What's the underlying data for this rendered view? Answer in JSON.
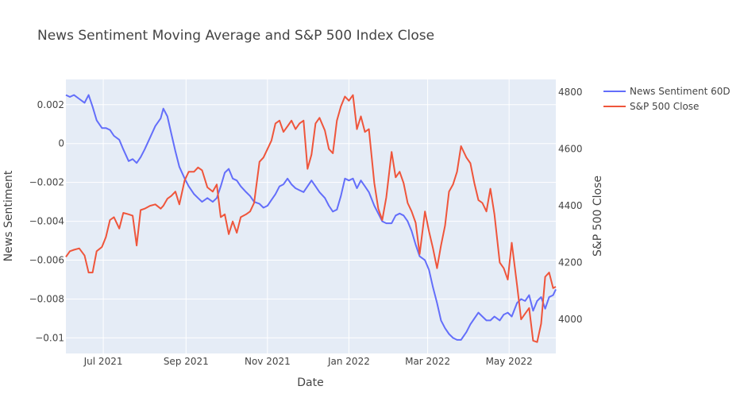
{
  "chart_data": {
    "type": "line",
    "title": "News Sentiment Moving Average and S&P 500 Index Close",
    "xlabel": "Date",
    "ylabel": "News Sentiment",
    "y2label": "S&P 500 Close",
    "x_range": [
      "2021-06-03",
      "2022-06-05"
    ],
    "ylim": [
      -0.0108,
      0.0033
    ],
    "y2lim": [
      3880,
      4845
    ],
    "x_ticks": [
      {
        "date": "2021-07-01",
        "label": "Jul 2021"
      },
      {
        "date": "2021-09-01",
        "label": "Sep 2021"
      },
      {
        "date": "2021-11-01",
        "label": "Nov 2021"
      },
      {
        "date": "2022-01-01",
        "label": "Jan 2022"
      },
      {
        "date": "2022-03-01",
        "label": "Mar 2022"
      },
      {
        "date": "2022-05-01",
        "label": "May 2022"
      }
    ],
    "y_ticks": [
      {
        "value": 0.002,
        "label": "0.002"
      },
      {
        "value": 0,
        "label": "0"
      },
      {
        "value": -0.002,
        "label": "−0.002"
      },
      {
        "value": -0.004,
        "label": "−0.004"
      },
      {
        "value": -0.006,
        "label": "−0.006"
      },
      {
        "value": -0.008,
        "label": "−0.008"
      },
      {
        "value": -0.01,
        "label": "−0.01"
      }
    ],
    "y2_ticks": [
      {
        "value": 4000,
        "label": "4000"
      },
      {
        "value": 4200,
        "label": "4200"
      },
      {
        "value": 4400,
        "label": "4400"
      },
      {
        "value": 4600,
        "label": "4600"
      },
      {
        "value": 4800,
        "label": "4800"
      }
    ],
    "grid": true,
    "legend_position": "top-right",
    "colors": {
      "plot_bg": "#e5ecf6",
      "grid": "#ffffff",
      "sentiment": "#636efa",
      "sp500": "#ef553b"
    },
    "series": [
      {
        "name": "News Sentiment 60D",
        "axis": "left",
        "color": "#636efa",
        "points": [
          [
            "2021-06-03",
            0.0025
          ],
          [
            "2021-06-06",
            0.0024
          ],
          [
            "2021-06-09",
            0.0025
          ],
          [
            "2021-06-13",
            0.0023
          ],
          [
            "2021-06-17",
            0.0021
          ],
          [
            "2021-06-20",
            0.0025
          ],
          [
            "2021-06-23",
            0.0019
          ],
          [
            "2021-06-26",
            0.0012
          ],
          [
            "2021-06-30",
            0.0008
          ],
          [
            "2021-07-03",
            0.0008
          ],
          [
            "2021-07-06",
            0.0007
          ],
          [
            "2021-07-09",
            0.0004
          ],
          [
            "2021-07-13",
            0.0002
          ],
          [
            "2021-07-16",
            -0.0003
          ],
          [
            "2021-07-20",
            -0.0009
          ],
          [
            "2021-07-23",
            -0.0008
          ],
          [
            "2021-07-26",
            -0.001
          ],
          [
            "2021-07-29",
            -0.0007
          ],
          [
            "2021-08-01",
            -0.0003
          ],
          [
            "2021-08-05",
            0.0003
          ],
          [
            "2021-08-09",
            0.0009
          ],
          [
            "2021-08-13",
            0.0013
          ],
          [
            "2021-08-15",
            0.0018
          ],
          [
            "2021-08-18",
            0.0014
          ],
          [
            "2021-08-21",
            0.0005
          ],
          [
            "2021-08-24",
            -0.0004
          ],
          [
            "2021-08-27",
            -0.0012
          ],
          [
            "2021-08-31",
            -0.0018
          ],
          [
            "2021-09-03",
            -0.0022
          ],
          [
            "2021-09-07",
            -0.0026
          ],
          [
            "2021-09-10",
            -0.0028
          ],
          [
            "2021-09-13",
            -0.003
          ],
          [
            "2021-09-17",
            -0.0028
          ],
          [
            "2021-09-21",
            -0.003
          ],
          [
            "2021-09-24",
            -0.0028
          ],
          [
            "2021-09-27",
            -0.0022
          ],
          [
            "2021-09-30",
            -0.0015
          ],
          [
            "2021-10-03",
            -0.0013
          ],
          [
            "2021-10-06",
            -0.0018
          ],
          [
            "2021-10-09",
            -0.0019
          ],
          [
            "2021-10-12",
            -0.0022
          ],
          [
            "2021-10-16",
            -0.0025
          ],
          [
            "2021-10-19",
            -0.0027
          ],
          [
            "2021-10-22",
            -0.003
          ],
          [
            "2021-10-26",
            -0.0031
          ],
          [
            "2021-10-29",
            -0.0033
          ],
          [
            "2021-11-01",
            -0.0032
          ],
          [
            "2021-11-04",
            -0.0029
          ],
          [
            "2021-11-07",
            -0.0026
          ],
          [
            "2021-11-10",
            -0.0022
          ],
          [
            "2021-11-13",
            -0.0021
          ],
          [
            "2021-11-16",
            -0.0018
          ],
          [
            "2021-11-19",
            -0.0021
          ],
          [
            "2021-11-22",
            -0.0023
          ],
          [
            "2021-11-25",
            -0.0024
          ],
          [
            "2021-11-28",
            -0.0025
          ],
          [
            "2021-12-01",
            -0.0022
          ],
          [
            "2021-12-04",
            -0.0019
          ],
          [
            "2021-12-07",
            -0.0022
          ],
          [
            "2021-12-10",
            -0.0025
          ],
          [
            "2021-12-14",
            -0.0028
          ],
          [
            "2021-12-17",
            -0.0032
          ],
          [
            "2021-12-20",
            -0.0035
          ],
          [
            "2021-12-23",
            -0.0034
          ],
          [
            "2021-12-26",
            -0.0027
          ],
          [
            "2021-12-29",
            -0.0018
          ],
          [
            "2022-01-01",
            -0.0019
          ],
          [
            "2022-01-04",
            -0.0018
          ],
          [
            "2022-01-07",
            -0.0023
          ],
          [
            "2022-01-10",
            -0.0019
          ],
          [
            "2022-01-13",
            -0.0022
          ],
          [
            "2022-01-16",
            -0.0025
          ],
          [
            "2022-01-20",
            -0.0032
          ],
          [
            "2022-01-23",
            -0.0036
          ],
          [
            "2022-01-26",
            -0.004
          ],
          [
            "2022-01-29",
            -0.0041
          ],
          [
            "2022-02-02",
            -0.0041
          ],
          [
            "2022-02-05",
            -0.0037
          ],
          [
            "2022-02-08",
            -0.0036
          ],
          [
            "2022-02-11",
            -0.0037
          ],
          [
            "2022-02-14",
            -0.004
          ],
          [
            "2022-02-17",
            -0.0045
          ],
          [
            "2022-02-20",
            -0.0052
          ],
          [
            "2022-02-23",
            -0.0058
          ],
          [
            "2022-02-27",
            -0.006
          ],
          [
            "2022-03-02",
            -0.0065
          ],
          [
            "2022-03-05",
            -0.0074
          ],
          [
            "2022-03-08",
            -0.0082
          ],
          [
            "2022-03-11",
            -0.0091
          ],
          [
            "2022-03-14",
            -0.0095
          ],
          [
            "2022-03-17",
            -0.0098
          ],
          [
            "2022-03-20",
            -0.01
          ],
          [
            "2022-03-23",
            -0.0101
          ],
          [
            "2022-03-26",
            -0.0101
          ],
          [
            "2022-03-30",
            -0.0097
          ],
          [
            "2022-04-02",
            -0.0093
          ],
          [
            "2022-04-05",
            -0.009
          ],
          [
            "2022-04-08",
            -0.0087
          ],
          [
            "2022-04-11",
            -0.0089
          ],
          [
            "2022-04-14",
            -0.0091
          ],
          [
            "2022-04-17",
            -0.0091
          ],
          [
            "2022-04-20",
            -0.0089
          ],
          [
            "2022-04-24",
            -0.0091
          ],
          [
            "2022-04-27",
            -0.0088
          ],
          [
            "2022-04-30",
            -0.0087
          ],
          [
            "2022-05-03",
            -0.0089
          ],
          [
            "2022-05-07",
            -0.0082
          ],
          [
            "2022-05-10",
            -0.008
          ],
          [
            "2022-05-13",
            -0.0081
          ],
          [
            "2022-05-16",
            -0.0078
          ],
          [
            "2022-05-19",
            -0.0086
          ],
          [
            "2022-05-22",
            -0.0081
          ],
          [
            "2022-05-25",
            -0.0079
          ],
          [
            "2022-05-28",
            -0.0085
          ],
          [
            "2022-05-31",
            -0.0079
          ],
          [
            "2022-06-03",
            -0.0078
          ],
          [
            "2022-06-05",
            -0.0075
          ]
        ]
      },
      {
        "name": "S&P 500 Close",
        "axis": "right",
        "color": "#ef553b",
        "points": [
          [
            "2021-06-03",
            4220
          ],
          [
            "2021-06-06",
            4240
          ],
          [
            "2021-06-09",
            4245
          ],
          [
            "2021-06-13",
            4250
          ],
          [
            "2021-06-17",
            4225
          ],
          [
            "2021-06-20",
            4165
          ],
          [
            "2021-06-23",
            4165
          ],
          [
            "2021-06-26",
            4240
          ],
          [
            "2021-06-30",
            4255
          ],
          [
            "2021-07-03",
            4290
          ],
          [
            "2021-07-06",
            4350
          ],
          [
            "2021-07-09",
            4360
          ],
          [
            "2021-07-13",
            4320
          ],
          [
            "2021-07-16",
            4375
          ],
          [
            "2021-07-20",
            4370
          ],
          [
            "2021-07-23",
            4365
          ],
          [
            "2021-07-26",
            4260
          ],
          [
            "2021-07-29",
            4385
          ],
          [
            "2021-08-01",
            4390
          ],
          [
            "2021-08-05",
            4400
          ],
          [
            "2021-08-09",
            4405
          ],
          [
            "2021-08-13",
            4390
          ],
          [
            "2021-08-15",
            4400
          ],
          [
            "2021-08-18",
            4425
          ],
          [
            "2021-08-21",
            4435
          ],
          [
            "2021-08-24",
            4450
          ],
          [
            "2021-08-27",
            4405
          ],
          [
            "2021-08-31",
            4490
          ],
          [
            "2021-09-03",
            4520
          ],
          [
            "2021-09-07",
            4520
          ],
          [
            "2021-09-10",
            4535
          ],
          [
            "2021-09-13",
            4525
          ],
          [
            "2021-09-17",
            4465
          ],
          [
            "2021-09-21",
            4450
          ],
          [
            "2021-09-24",
            4475
          ],
          [
            "2021-09-27",
            4360
          ],
          [
            "2021-09-30",
            4370
          ],
          [
            "2021-10-03",
            4300
          ],
          [
            "2021-10-06",
            4345
          ],
          [
            "2021-10-09",
            4305
          ],
          [
            "2021-10-12",
            4360
          ],
          [
            "2021-10-16",
            4370
          ],
          [
            "2021-10-19",
            4380
          ],
          [
            "2021-10-22",
            4410
          ],
          [
            "2021-10-26",
            4555
          ],
          [
            "2021-10-29",
            4570
          ],
          [
            "2021-11-01",
            4600
          ],
          [
            "2021-11-04",
            4630
          ],
          [
            "2021-11-07",
            4690
          ],
          [
            "2021-11-10",
            4700
          ],
          [
            "2021-11-13",
            4660
          ],
          [
            "2021-11-16",
            4680
          ],
          [
            "2021-11-19",
            4700
          ],
          [
            "2021-11-22",
            4670
          ],
          [
            "2021-11-25",
            4690
          ],
          [
            "2021-11-28",
            4700
          ],
          [
            "2021-12-01",
            4530
          ],
          [
            "2021-12-04",
            4580
          ],
          [
            "2021-12-07",
            4690
          ],
          [
            "2021-12-10",
            4710
          ],
          [
            "2021-12-14",
            4665
          ],
          [
            "2021-12-17",
            4600
          ],
          [
            "2021-12-20",
            4585
          ],
          [
            "2021-12-23",
            4700
          ],
          [
            "2021-12-26",
            4750
          ],
          [
            "2021-12-29",
            4785
          ],
          [
            "2022-01-01",
            4770
          ],
          [
            "2022-01-04",
            4790
          ],
          [
            "2022-01-07",
            4670
          ],
          [
            "2022-01-10",
            4715
          ],
          [
            "2022-01-13",
            4660
          ],
          [
            "2022-01-16",
            4670
          ],
          [
            "2022-01-20",
            4480
          ],
          [
            "2022-01-23",
            4390
          ],
          [
            "2022-01-26",
            4350
          ],
          [
            "2022-01-29",
            4430
          ],
          [
            "2022-02-02",
            4590
          ],
          [
            "2022-02-05",
            4500
          ],
          [
            "2022-02-08",
            4520
          ],
          [
            "2022-02-11",
            4480
          ],
          [
            "2022-02-14",
            4410
          ],
          [
            "2022-02-17",
            4380
          ],
          [
            "2022-02-20",
            4340
          ],
          [
            "2022-02-23",
            4230
          ],
          [
            "2022-02-27",
            4380
          ],
          [
            "2022-03-02",
            4310
          ],
          [
            "2022-03-05",
            4250
          ],
          [
            "2022-03-08",
            4180
          ],
          [
            "2022-03-11",
            4260
          ],
          [
            "2022-03-14",
            4330
          ],
          [
            "2022-03-17",
            4450
          ],
          [
            "2022-03-20",
            4475
          ],
          [
            "2022-03-23",
            4520
          ],
          [
            "2022-03-26",
            4610
          ],
          [
            "2022-03-30",
            4570
          ],
          [
            "2022-04-02",
            4550
          ],
          [
            "2022-04-05",
            4480
          ],
          [
            "2022-04-08",
            4420
          ],
          [
            "2022-04-11",
            4410
          ],
          [
            "2022-04-14",
            4380
          ],
          [
            "2022-04-17",
            4460
          ],
          [
            "2022-04-20",
            4370
          ],
          [
            "2022-04-24",
            4200
          ],
          [
            "2022-04-27",
            4180
          ],
          [
            "2022-04-30",
            4140
          ],
          [
            "2022-05-03",
            4270
          ],
          [
            "2022-05-07",
            4120
          ],
          [
            "2022-05-10",
            4000
          ],
          [
            "2022-05-13",
            4020
          ],
          [
            "2022-05-16",
            4040
          ],
          [
            "2022-05-19",
            3925
          ],
          [
            "2022-05-22",
            3920
          ],
          [
            "2022-05-25",
            3985
          ],
          [
            "2022-05-28",
            4150
          ],
          [
            "2022-05-31",
            4165
          ],
          [
            "2022-06-03",
            4110
          ],
          [
            "2022-06-05",
            4115
          ]
        ]
      }
    ]
  }
}
